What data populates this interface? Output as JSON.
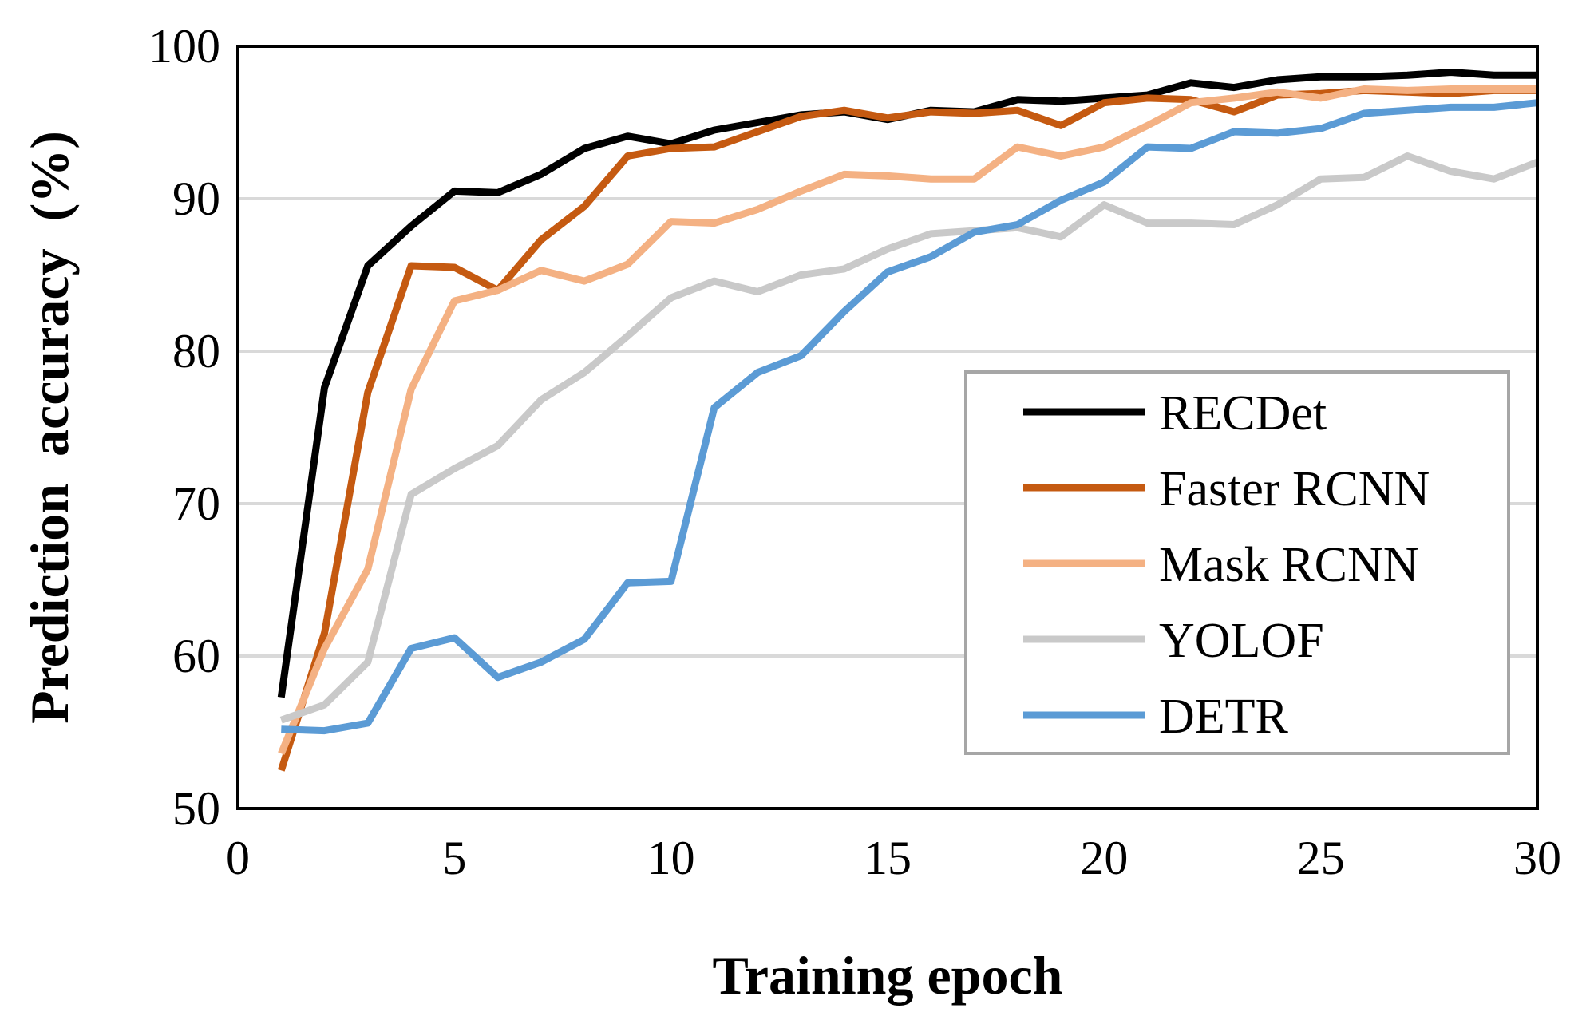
{
  "chart_data": {
    "type": "line",
    "title": "",
    "xlabel": "Training epoch",
    "ylabel": "Prediction  accuracy  (%)",
    "xlim": [
      0,
      30
    ],
    "ylim": [
      50,
      100
    ],
    "xticks": [
      0,
      5,
      10,
      15,
      20,
      25,
      30
    ],
    "yticks": [
      50,
      60,
      70,
      80,
      90,
      100
    ],
    "grid": "horizontal",
    "legend_position": "center-right",
    "x": [
      1,
      2,
      3,
      4,
      5,
      6,
      7,
      8,
      9,
      10,
      11,
      12,
      13,
      14,
      15,
      16,
      17,
      18,
      19,
      20,
      21,
      22,
      23,
      24,
      25,
      26,
      27,
      28,
      29,
      30
    ],
    "series": [
      {
        "name": "RECDet",
        "color": "#000000",
        "values": [
          57.3,
          77.6,
          85.6,
          88.2,
          90.5,
          90.4,
          91.6,
          93.3,
          94.1,
          93.6,
          94.5,
          95.0,
          95.5,
          95.7,
          95.2,
          95.8,
          95.7,
          96.5,
          96.4,
          96.6,
          96.8,
          97.6,
          97.3,
          97.8,
          98.0,
          98.0,
          98.1,
          98.3,
          98.1,
          98.1
        ]
      },
      {
        "name": "Faster RCNN",
        "color": "#C55A11",
        "values": [
          52.5,
          61.5,
          77.3,
          85.6,
          85.5,
          84.0,
          87.3,
          89.5,
          92.8,
          93.3,
          93.4,
          94.4,
          95.4,
          95.8,
          95.3,
          95.7,
          95.6,
          95.8,
          94.8,
          96.3,
          96.6,
          96.5,
          95.7,
          96.8,
          96.9,
          97.1,
          97.0,
          96.9,
          97.1,
          97.1
        ]
      },
      {
        "name": "Mask RCNN",
        "color": "#F4B183",
        "values": [
          53.6,
          60.5,
          65.7,
          77.5,
          83.3,
          84.0,
          85.3,
          84.6,
          85.7,
          88.5,
          88.4,
          89.3,
          90.5,
          91.6,
          91.5,
          91.3,
          91.3,
          93.4,
          92.8,
          93.4,
          94.8,
          96.3,
          96.6,
          97.0,
          96.6,
          97.2,
          97.1,
          97.2,
          97.2,
          97.2
        ]
      },
      {
        "name": "YOLOF",
        "color": "#C9C9C9",
        "values": [
          55.8,
          56.8,
          59.6,
          70.6,
          72.3,
          73.8,
          76.8,
          78.6,
          81.0,
          83.5,
          84.6,
          83.9,
          85.0,
          85.4,
          86.7,
          87.7,
          87.9,
          88.1,
          87.5,
          89.6,
          88.4,
          88.4,
          88.3,
          89.6,
          91.3,
          91.4,
          92.8,
          91.8,
          91.3,
          92.4
        ]
      },
      {
        "name": "DETR",
        "color": "#5B9BD5",
        "values": [
          55.2,
          55.1,
          55.6,
          60.5,
          61.2,
          58.6,
          59.6,
          61.1,
          64.8,
          64.9,
          76.3,
          78.6,
          79.7,
          82.6,
          85.2,
          86.2,
          87.8,
          88.3,
          89.9,
          91.1,
          93.4,
          93.3,
          94.4,
          94.3,
          94.6,
          95.6,
          95.8,
          96.0,
          96.0,
          96.3
        ]
      }
    ]
  }
}
